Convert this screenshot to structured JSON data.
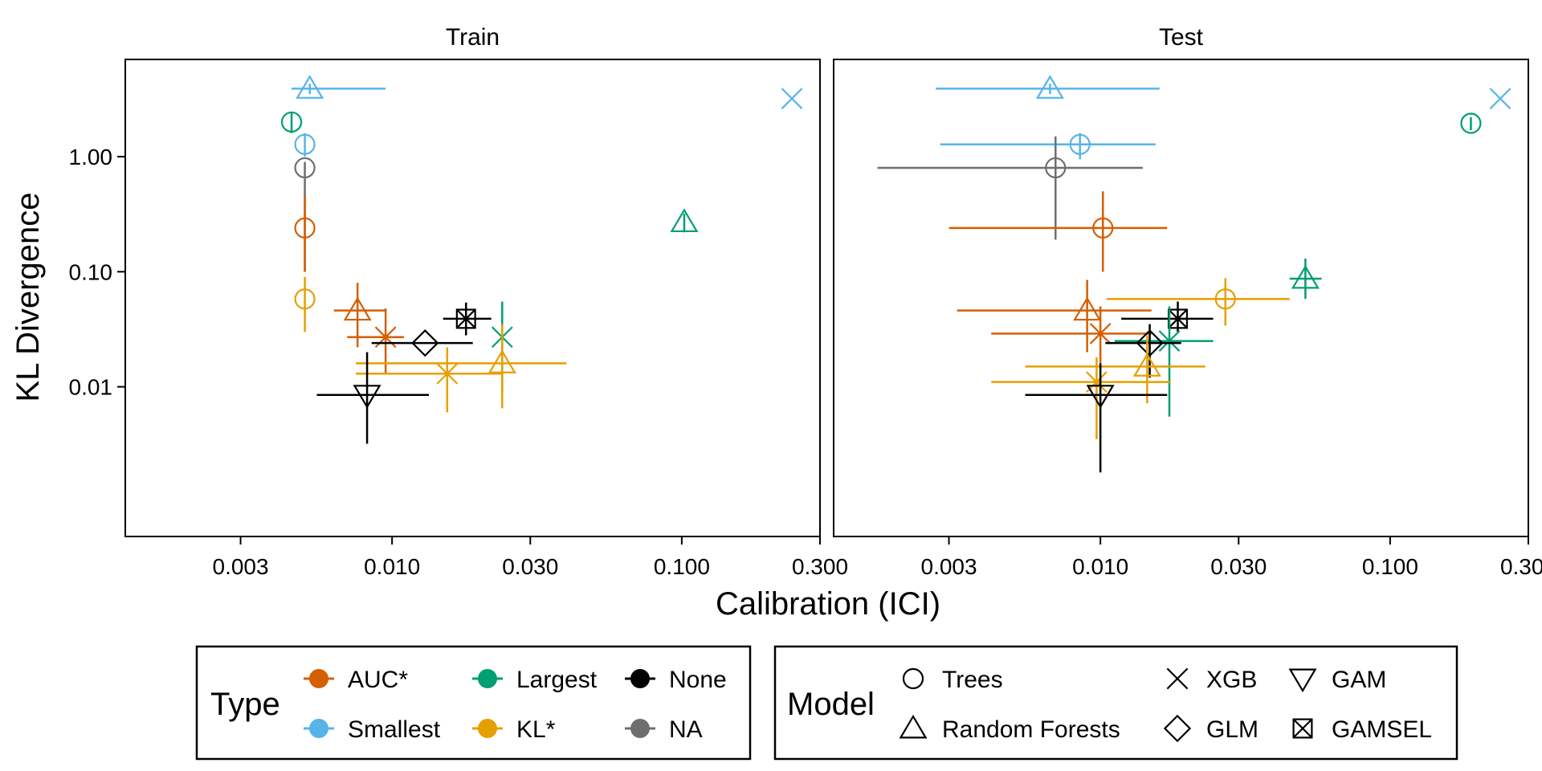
{
  "chart_data": {
    "type": "scatter",
    "x_scale": "log10",
    "y_scale": "log10",
    "xlabel": "Calibration (ICI)",
    "ylabel": "KL Divergence",
    "xlim": [
      0.0012,
      0.3
    ],
    "ylim": [
      0.0005,
      7
    ],
    "x_ticks": [
      {
        "value": 0.003,
        "label": "0.003"
      },
      {
        "value": 0.01,
        "label": "0.010"
      },
      {
        "value": 0.03,
        "label": "0.030"
      },
      {
        "value": 0.1,
        "label": "0.100"
      },
      {
        "value": 0.3,
        "label": "0.300"
      }
    ],
    "y_ticks": [
      {
        "value": 1.0,
        "label": "1.00"
      },
      {
        "value": 0.1,
        "label": "0.10"
      },
      {
        "value": 0.01,
        "label": "0.01"
      }
    ],
    "grid": false,
    "legend_placement": "bottom",
    "type_colors": {
      "AUC*": "#D55E00",
      "Smallest": "#56B4E9",
      "Largest": "#009E73",
      "KL*": "#E69F00",
      "None": "#000000",
      "NA": "#6E6E6E"
    },
    "panels": [
      {
        "title": "Train",
        "points": [
          {
            "type": "Smallest",
            "model": "Random Forests",
            "x": 0.0052,
            "y": 3.9,
            "x_err": [
              0.0045,
              0.0095
            ],
            "y_err": [
              3.5,
              4.3
            ]
          },
          {
            "type": "Smallest",
            "model": "XGB",
            "x": 0.24,
            "y": 3.2,
            "x_err": null,
            "y_err": null
          },
          {
            "type": "Largest",
            "model": "Trees",
            "x": 0.0045,
            "y": 2.0,
            "x_err": null,
            "y_err": [
              1.6,
              2.4
            ]
          },
          {
            "type": "Smallest",
            "model": "Trees",
            "x": 0.005,
            "y": 1.28,
            "x_err": null,
            "y_err": [
              1.0,
              1.6
            ]
          },
          {
            "type": "NA",
            "model": "Trees",
            "x": 0.005,
            "y": 0.8,
            "x_err": null,
            "y_err": [
              0.1,
              0.9
            ]
          },
          {
            "type": "AUC*",
            "model": "Trees",
            "x": 0.005,
            "y": 0.24,
            "x_err": null,
            "y_err": [
              0.1,
              0.45
            ]
          },
          {
            "type": "Largest",
            "model": "Random Forests",
            "x": 0.102,
            "y": 0.27,
            "x_err": null,
            "y_err": [
              0.22,
              0.32
            ]
          },
          {
            "type": "KL*",
            "model": "Trees",
            "x": 0.005,
            "y": 0.058,
            "x_err": null,
            "y_err": [
              0.03,
              0.09
            ]
          },
          {
            "type": "AUC*",
            "model": "Random Forests",
            "x": 0.0076,
            "y": 0.046,
            "x_err": [
              0.0063,
              0.0095
            ],
            "y_err": [
              0.022,
              0.08
            ]
          },
          {
            "type": "None",
            "model": "GAMSEL",
            "x": 0.018,
            "y": 0.039,
            "x_err": [
              0.015,
              0.022
            ],
            "y_err": [
              0.028,
              0.054
            ]
          },
          {
            "type": "AUC*",
            "model": "XGB",
            "x": 0.0095,
            "y": 0.027,
            "x_err": [
              0.007,
              0.011
            ],
            "y_err": [
              0.013,
              0.048
            ]
          },
          {
            "type": "Largest",
            "model": "XGB",
            "x": 0.024,
            "y": 0.027,
            "x_err": null,
            "y_err": [
              0.009,
              0.055
            ]
          },
          {
            "type": "None",
            "model": "GLM",
            "x": 0.013,
            "y": 0.024,
            "x_err": [
              0.0085,
              0.019
            ],
            "y_err": null
          },
          {
            "type": "KL*",
            "model": "Random Forests",
            "x": 0.024,
            "y": 0.016,
            "x_err": [
              0.0075,
              0.04
            ],
            "y_err": [
              0.0065,
              0.035
            ]
          },
          {
            "type": "KL*",
            "model": "XGB",
            "x": 0.0155,
            "y": 0.013,
            "x_err": [
              0.0075,
              0.024
            ],
            "y_err": [
              0.006,
              0.022
            ]
          },
          {
            "type": "None",
            "model": "GAM",
            "x": 0.0082,
            "y": 0.0085,
            "x_err": [
              0.0055,
              0.0134
            ],
            "y_err": [
              0.0032,
              0.02
            ]
          }
        ]
      },
      {
        "title": "Test",
        "points": [
          {
            "type": "Smallest",
            "model": "Random Forests",
            "x": 0.0067,
            "y": 3.9,
            "x_err": [
              0.0027,
              0.016
            ],
            "y_err": [
              3.5,
              4.3
            ]
          },
          {
            "type": "Smallest",
            "model": "XGB",
            "x": 0.24,
            "y": 3.2,
            "x_err": null,
            "y_err": null
          },
          {
            "type": "Largest",
            "model": "Trees",
            "x": 0.19,
            "y": 1.95,
            "x_err": null,
            "y_err": [
              1.7,
              2.2
            ]
          },
          {
            "type": "Smallest",
            "model": "Trees",
            "x": 0.0085,
            "y": 1.28,
            "x_err": [
              0.0028,
              0.0155
            ],
            "y_err": [
              0.95,
              1.6
            ]
          },
          {
            "type": "NA",
            "model": "Trees",
            "x": 0.007,
            "y": 0.8,
            "x_err": [
              0.0017,
              0.014
            ],
            "y_err": [
              0.19,
              1.5
            ]
          },
          {
            "type": "AUC*",
            "model": "Trees",
            "x": 0.0102,
            "y": 0.24,
            "x_err": [
              0.003,
              0.017
            ],
            "y_err": [
              0.1,
              0.5
            ]
          },
          {
            "type": "Largest",
            "model": "Random Forests",
            "x": 0.051,
            "y": 0.087,
            "x_err": [
              0.045,
              0.058
            ],
            "y_err": [
              0.058,
              0.13
            ]
          },
          {
            "type": "KL*",
            "model": "Trees",
            "x": 0.027,
            "y": 0.058,
            "x_err": [
              0.0105,
              0.045
            ],
            "y_err": [
              0.034,
              0.088
            ]
          },
          {
            "type": "AUC*",
            "model": "Random Forests",
            "x": 0.009,
            "y": 0.046,
            "x_err": [
              0.0032,
              0.015
            ],
            "y_err": [
              0.02,
              0.085
            ]
          },
          {
            "type": "None",
            "model": "GAMSEL",
            "x": 0.0185,
            "y": 0.039,
            "x_err": [
              0.0118,
              0.0245
            ],
            "y_err": [
              0.03,
              0.055
            ]
          },
          {
            "type": "AUC*",
            "model": "XGB",
            "x": 0.01,
            "y": 0.029,
            "x_err": [
              0.0042,
              0.015
            ],
            "y_err": [
              0.016,
              0.05
            ]
          },
          {
            "type": "Largest",
            "model": "XGB",
            "x": 0.0173,
            "y": 0.025,
            "x_err": [
              0.0112,
              0.0245
            ],
            "y_err": [
              0.0055,
              0.05
            ]
          },
          {
            "type": "None",
            "model": "GLM",
            "x": 0.0148,
            "y": 0.024,
            "x_err": [
              0.0104,
              0.019
            ],
            "y_err": [
              0.012,
              0.035
            ]
          },
          {
            "type": "KL*",
            "model": "Random Forests",
            "x": 0.0145,
            "y": 0.015,
            "x_err": [
              0.0055,
              0.023
            ],
            "y_err": [
              0.0072,
              0.028
            ]
          },
          {
            "type": "KL*",
            "model": "XGB",
            "x": 0.0097,
            "y": 0.011,
            "x_err": [
              0.0042,
              0.0175
            ],
            "y_err": [
              0.0035,
              0.018
            ]
          },
          {
            "type": "None",
            "model": "GAM",
            "x": 0.01,
            "y": 0.0085,
            "x_err": [
              0.0055,
              0.017
            ],
            "y_err": [
              0.0018,
              0.016
            ]
          }
        ]
      }
    ],
    "legends": {
      "type_title": "Type",
      "type_items": [
        "AUC*",
        "Smallest",
        "Largest",
        "KL*",
        "None",
        "NA"
      ],
      "model_title": "Model",
      "model_items": [
        "Trees",
        "Random Forests",
        "XGB",
        "GLM",
        "GAM",
        "GAMSEL"
      ]
    }
  }
}
